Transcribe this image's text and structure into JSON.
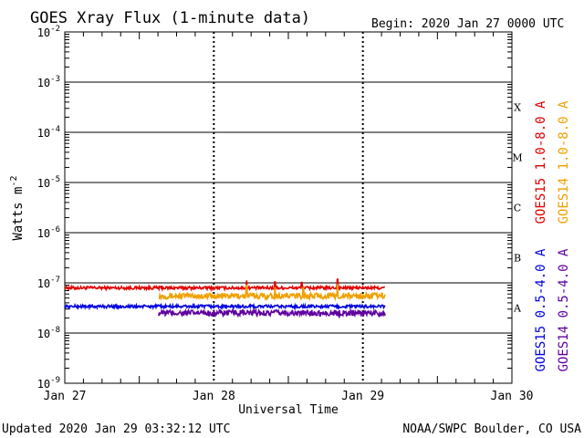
{
  "chart_data": {
    "type": "line",
    "title": "GOES Xray Flux (1-minute data)",
    "begin_label": "Begin:  2020 Jan 27 0000 UTC",
    "xlabel": "Universal Time",
    "ylabel": "Watts m",
    "ylabel_exp": "-2",
    "x_ticks": [
      {
        "label": "Jan 27",
        "day": 0
      },
      {
        "label": "Jan 28",
        "day": 1
      },
      {
        "label": "Jan 29",
        "day": 2
      },
      {
        "label": "Jan 30",
        "day": 3
      }
    ],
    "xlim_days": [
      0,
      3
    ],
    "ylim_exp": [
      -9,
      -2
    ],
    "y_ticks": [
      {
        "base": "10",
        "exp": "-2",
        "value": -2
      },
      {
        "base": "10",
        "exp": "-3",
        "value": -3
      },
      {
        "base": "10",
        "exp": "-4",
        "value": -4
      },
      {
        "base": "10",
        "exp": "-5",
        "value": -5
      },
      {
        "base": "10",
        "exp": "-6",
        "value": -6
      },
      {
        "base": "10",
        "exp": "-7",
        "value": -7
      },
      {
        "base": "10",
        "exp": "-8",
        "value": -8
      },
      {
        "base": "10",
        "exp": "-9",
        "value": -9
      }
    ],
    "flare_classes": [
      {
        "label": "X",
        "exp": -3.5
      },
      {
        "label": "M",
        "exp": -4.5
      },
      {
        "label": "C",
        "exp": -5.5
      },
      {
        "label": "B",
        "exp": -6.5
      },
      {
        "label": "A",
        "exp": -7.5
      }
    ],
    "series": [
      {
        "name": "GOES15 1.0-8.0 A",
        "color": "#e00000",
        "start_day": 0.0,
        "end_day": 2.15,
        "base_exp": -7.1,
        "noise": 0.03,
        "spikes": [
          {
            "day": 1.22,
            "exp": -6.95
          },
          {
            "day": 1.41,
            "exp": -6.98
          },
          {
            "day": 1.59,
            "exp": -6.99
          },
          {
            "day": 1.83,
            "exp": -6.93
          }
        ]
      },
      {
        "name": "GOES14 1.0-8.0 A",
        "color": "#f0a000",
        "start_day": 0.63,
        "end_day": 2.15,
        "base_exp": -7.26,
        "noise": 0.06,
        "spikes": [
          {
            "day": 1.22,
            "exp": -7.05
          },
          {
            "day": 1.41,
            "exp": -7.08
          },
          {
            "day": 1.6,
            "exp": -7.1
          },
          {
            "day": 1.83,
            "exp": -7.02
          }
        ]
      },
      {
        "name": "GOES15 0.5-4.0 A",
        "color": "#0000e0",
        "start_day": 0.0,
        "end_day": 2.15,
        "base_exp": -7.47,
        "noise": 0.03,
        "spikes": []
      },
      {
        "name": "GOES14 0.5-4.0 A",
        "color": "#6000a0",
        "start_day": 0.63,
        "end_day": 2.15,
        "base_exp": -7.6,
        "noise": 0.06,
        "spikes": []
      }
    ],
    "legend_position": "right",
    "grid": "horizontal lines at each decade"
  },
  "footer": {
    "updated": "Updated 2020 Jan 29 03:32:12 UTC",
    "credit": "NOAA/SWPC Boulder, CO USA"
  }
}
